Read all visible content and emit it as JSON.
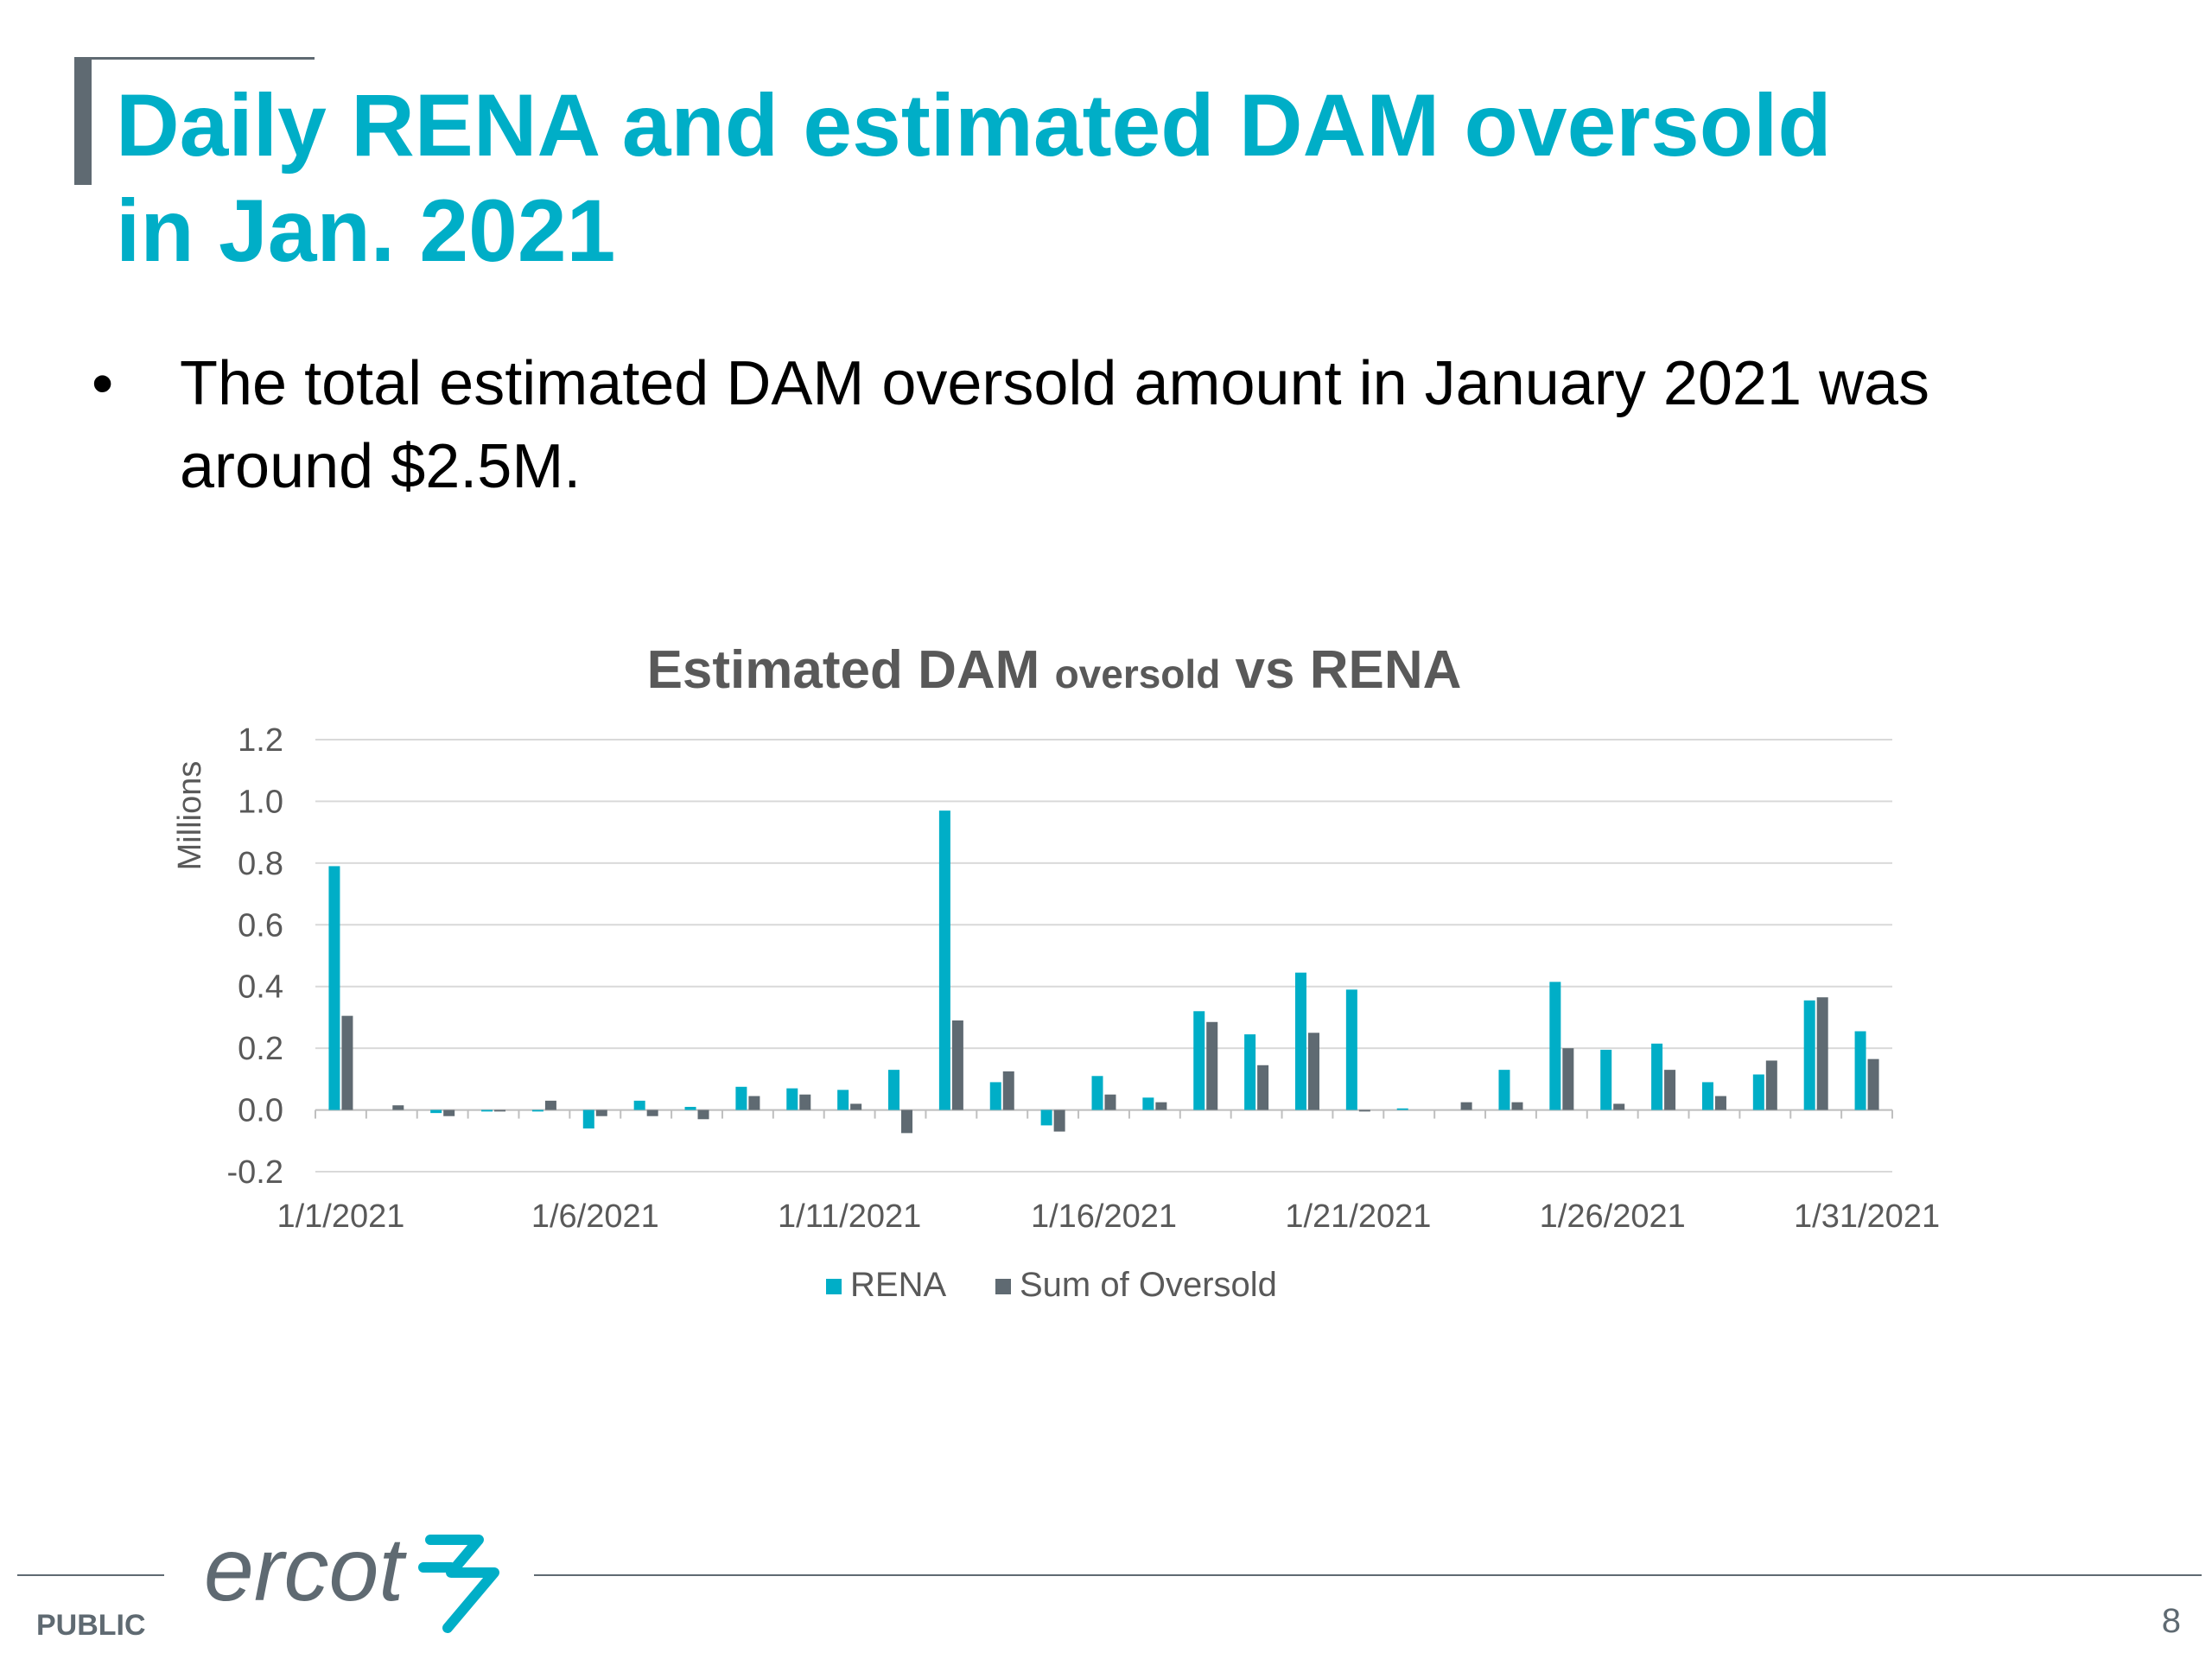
{
  "slide": {
    "title_line1": "Daily RENA and estimated DAM oversold",
    "title_line2": "in Jan. 2021",
    "bullets": [
      {
        "symbol": "•",
        "line1": "The total estimated DAM oversold amount in January 2021 was",
        "line2": "around $2.5M."
      }
    ],
    "footer": {
      "logo_text": "ercot",
      "classification": "PUBLIC",
      "page_number": "8"
    },
    "colors": {
      "title": "#00aec7",
      "accent_gray": "#5f6a72"
    }
  },
  "chart_data": {
    "type": "bar",
    "title_part1": "Estimated DAM",
    "title_part2": "oversold",
    "title_part3": "vs RENA",
    "ylabel": "Millions",
    "ylim": [
      -0.2,
      1.2
    ],
    "y_ticks": [
      "1.2",
      "1.0",
      "0.8",
      "0.6",
      "0.4",
      "0.2",
      "0.0",
      "-0.2"
    ],
    "y_tick_values": [
      1.2,
      1.0,
      0.8,
      0.6,
      0.4,
      0.2,
      0.0,
      -0.2
    ],
    "grid": true,
    "legend_position": "bottom",
    "categories": [
      "1/1/2021",
      "1/2/2021",
      "1/3/2021",
      "1/4/2021",
      "1/5/2021",
      "1/6/2021",
      "1/7/2021",
      "1/8/2021",
      "1/9/2021",
      "1/10/2021",
      "1/11/2021",
      "1/12/2021",
      "1/13/2021",
      "1/14/2021",
      "1/15/2021",
      "1/16/2021",
      "1/17/2021",
      "1/18/2021",
      "1/19/2021",
      "1/20/2021",
      "1/21/2021",
      "1/22/2021",
      "1/23/2021",
      "1/24/2021",
      "1/25/2021",
      "1/26/2021",
      "1/27/2021",
      "1/28/2021",
      "1/29/2021",
      "1/30/2021",
      "1/31/2021"
    ],
    "x_tick_labels": [
      "1/1/2021",
      "1/6/2021",
      "1/11/2021",
      "1/16/2021",
      "1/21/2021",
      "1/26/2021",
      "1/31/2021"
    ],
    "x_tick_indices": [
      0,
      5,
      10,
      15,
      20,
      25,
      30
    ],
    "series": [
      {
        "name": "RENA",
        "color": "#00aec7",
        "values": [
          0.79,
          0.0,
          -0.01,
          -0.005,
          -0.005,
          -0.06,
          0.03,
          0.01,
          0.075,
          0.07,
          0.065,
          0.13,
          0.97,
          0.09,
          -0.05,
          0.11,
          0.04,
          0.32,
          0.245,
          0.445,
          0.39,
          0.005,
          0.0,
          0.13,
          0.415,
          0.195,
          0.215,
          0.09,
          0.115,
          0.355,
          0.255
        ]
      },
      {
        "name": "Sum of Oversold",
        "color": "#5f6a72",
        "values": [
          0.305,
          0.015,
          -0.02,
          -0.005,
          0.03,
          -0.02,
          -0.02,
          -0.03,
          0.045,
          0.05,
          0.02,
          -0.075,
          0.29,
          0.125,
          -0.07,
          0.05,
          0.025,
          0.285,
          0.145,
          0.25,
          -0.005,
          0.0,
          0.025,
          0.025,
          0.2,
          0.02,
          0.13,
          0.045,
          0.16,
          0.365,
          0.165
        ]
      }
    ]
  }
}
